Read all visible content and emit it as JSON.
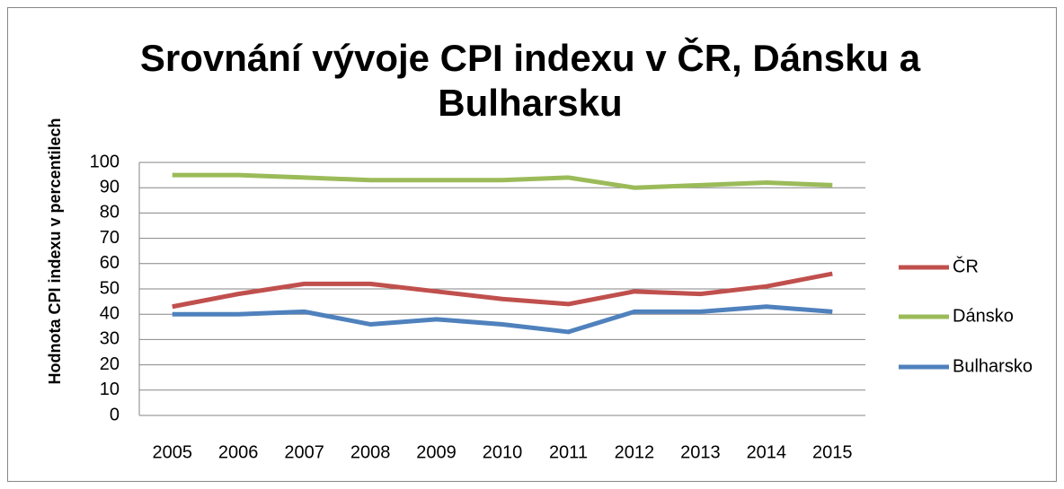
{
  "chart_data": {
    "type": "line",
    "title": "Srovnání vývoje CPI indexu v ČR, Dánsku a Bulharsku",
    "ylabel": "Hodnota CPI indexu v percentilech",
    "categories": [
      "2005",
      "2006",
      "2007",
      "2008",
      "2009",
      "2010",
      "2011",
      "2012",
      "2013",
      "2014",
      "2015"
    ],
    "series": [
      {
        "name": "ČR",
        "color": "#c0504d",
        "values": [
          43,
          48,
          52,
          52,
          49,
          46,
          44,
          49,
          48,
          51,
          56
        ]
      },
      {
        "name": "Dánsko",
        "color": "#9bbb59",
        "values": [
          95,
          95,
          94,
          93,
          93,
          93,
          94,
          90,
          91,
          92,
          91
        ]
      },
      {
        "name": "Bulharsko",
        "color": "#4f81bd",
        "values": [
          40,
          40,
          41,
          36,
          38,
          36,
          33,
          41,
          41,
          43,
          41
        ]
      }
    ],
    "ylim": [
      0,
      100
    ],
    "yticks": [
      0,
      10,
      20,
      30,
      40,
      50,
      60,
      70,
      80,
      90,
      100
    ],
    "grid": true,
    "legend": "right"
  }
}
